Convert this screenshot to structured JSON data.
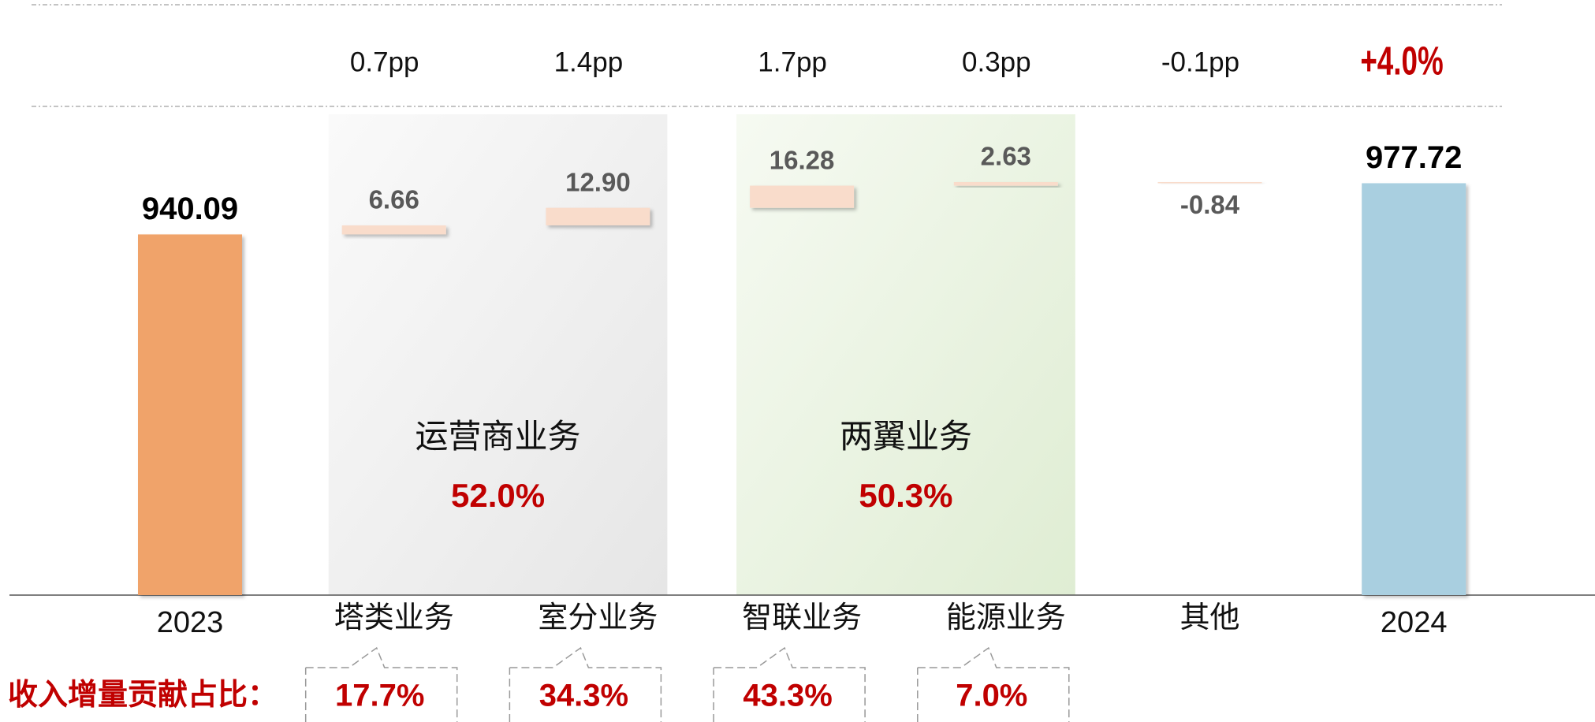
{
  "chart_data": {
    "type": "waterfall",
    "categories": [
      "2023",
      "塔类业务",
      "室分业务",
      "智联业务",
      "能源业务",
      "其他",
      "2024"
    ],
    "values": [
      940.09,
      6.66,
      12.9,
      16.28,
      2.63,
      -0.84,
      977.72
    ],
    "value_labels": [
      "940.09",
      "6.66",
      "12.90",
      "16.28",
      "2.63",
      "-0.84",
      "977.72"
    ],
    "colors": [
      "#f0a36a",
      "#f9dccb",
      "#f9dccb",
      "#f9dccb",
      "#f9dccb",
      "#f9dccb",
      "#a9cfe0"
    ],
    "ylim": [
      675,
      1000
    ],
    "change_labels": [
      "0.7pp",
      "1.4pp",
      "1.7pp",
      "0.3pp",
      "-0.1pp"
    ],
    "total_change": "+4.0%",
    "groups": [
      {
        "label": "运营商业务",
        "share": "52.0%",
        "color": "#ececec"
      },
      {
        "label": "两翼业务",
        "share": "50.3%",
        "color": "#e6f0dc"
      }
    ],
    "contribution_title": "收入增量贡献占比：",
    "contributions": [
      "17.7%",
      "34.3%",
      "43.3%",
      "7.0%"
    ]
  }
}
